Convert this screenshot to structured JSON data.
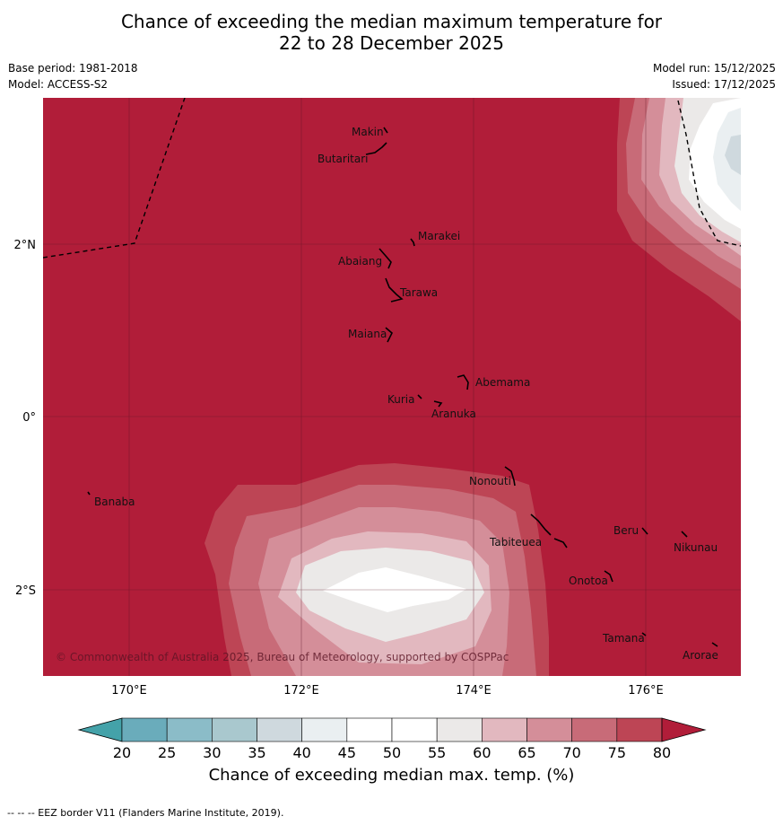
{
  "title": {
    "line1": "Chance of exceeding the median maximum temperature for",
    "line2": "22 to 28 December 2025"
  },
  "meta": {
    "base_period": "Base period: 1981-2018",
    "model": "Model: ACCESS-S2",
    "model_run": "Model run: 15/12/2025",
    "issued": "Issued: 17/12/2025"
  },
  "map": {
    "lat_labels": [
      "2°N",
      "0°",
      "2°S"
    ],
    "lon_labels": [
      "170°E",
      "172°E",
      "174°E",
      "176°E"
    ],
    "places": [
      "Makin",
      "Butaritari",
      "Marakei",
      "Abaiang",
      "Tarawa",
      "Maiana",
      "Abemama",
      "Kuria",
      "Aranuka",
      "Banaba",
      "Nonouti",
      "Tabiteuea",
      "Beru",
      "Nikunau",
      "Onotoa",
      "Tamana",
      "Arorae"
    ],
    "copyright": "© Commonwealth of Australia 2025, Bureau of Meteorology, supported by COSPPac"
  },
  "colorbar": {
    "ticks": [
      "20",
      "25",
      "30",
      "35",
      "40",
      "45",
      "50",
      "55",
      "60",
      "65",
      "70",
      "75",
      "80"
    ],
    "colors": [
      "#6aacbb",
      "#8bbcc8",
      "#a9c8ce",
      "#cfd9de",
      "#eaeff1",
      "#ffffff",
      "#ffffff",
      "#ebe9e8",
      "#e2b8bf",
      "#d48e99",
      "#c86b78",
      "#bd4555"
    ],
    "under_color": "#44a2a9",
    "over_color": "#b11d39",
    "label": "Chance of exceeding median max. temp. (%)"
  },
  "colors": {
    "base": "#b11d39",
    "contours": [
      "#bd4555",
      "#c86b78",
      "#d48e99",
      "#e2b8bf",
      "#ebe9e8",
      "#ffffff",
      "#eaeff1",
      "#cfd9de"
    ]
  },
  "footnote": "--  --  -- EEZ border V11 (Flanders Marine Institute, 2019)."
}
